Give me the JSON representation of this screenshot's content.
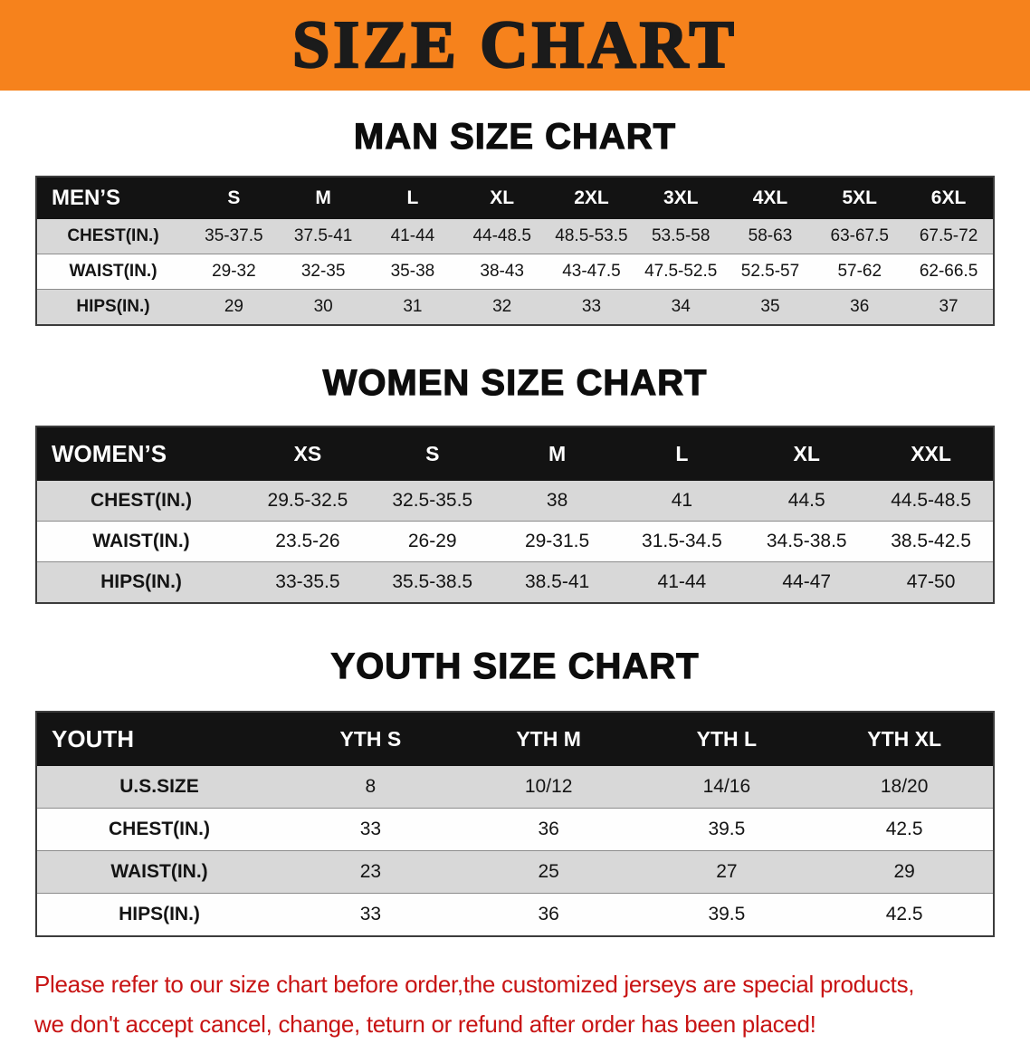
{
  "banner": {
    "title": "SIZE CHART",
    "bg_color": "#f6821c",
    "text_color": "#1b1b1b"
  },
  "sections": [
    {
      "heading": "MAN SIZE CHART",
      "table": {
        "header": [
          "MEN’S",
          "S",
          "M",
          "L",
          "XL",
          "2XL",
          "3XL",
          "4XL",
          "5XL",
          "6XL"
        ],
        "rows": [
          [
            "CHEST(IN.)",
            "35-37.5",
            "37.5-41",
            "41-44",
            "44-48.5",
            "48.5-53.5",
            "53.5-58",
            "58-63",
            "63-67.5",
            "67.5-72"
          ],
          [
            "WAIST(IN.)",
            "29-32",
            "32-35",
            "35-38",
            "38-43",
            "43-47.5",
            "47.5-52.5",
            "52.5-57",
            "57-62",
            "62-66.5"
          ],
          [
            "HIPS(IN.)",
            "29",
            "30",
            "31",
            "32",
            "33",
            "34",
            "35",
            "36",
            "37"
          ]
        ]
      }
    },
    {
      "heading": "WOMEN SIZE CHART",
      "table": {
        "header": [
          "WOMEN’S",
          "XS",
          "S",
          "M",
          "L",
          "XL",
          "XXL"
        ],
        "rows": [
          [
            "CHEST(IN.)",
            "29.5-32.5",
            "32.5-35.5",
            "38",
            "41",
            "44.5",
            "44.5-48.5"
          ],
          [
            "WAIST(IN.)",
            "23.5-26",
            "26-29",
            "29-31.5",
            "31.5-34.5",
            "34.5-38.5",
            "38.5-42.5"
          ],
          [
            "HIPS(IN.)",
            "33-35.5",
            "35.5-38.5",
            "38.5-41",
            "41-44",
            "44-47",
            "47-50"
          ]
        ]
      }
    },
    {
      "heading": "YOUTH SIZE CHART",
      "table": {
        "header": [
          "YOUTH",
          "YTH S",
          "YTH M",
          "YTH L",
          "YTH XL"
        ],
        "rows": [
          [
            "U.S.SIZE",
            "8",
            "10/12",
            "14/16",
            "18/20"
          ],
          [
            "CHEST(IN.)",
            "33",
            "36",
            "39.5",
            "42.5"
          ],
          [
            "WAIST(IN.)",
            "23",
            "25",
            "27",
            "29"
          ],
          [
            "HIPS(IN.)",
            "33",
            "36",
            "39.5",
            "42.5"
          ]
        ]
      }
    }
  ],
  "disclaimer": {
    "color": "#c81414",
    "lines": [
      "Please refer to our size chart before order,the customized jerseys are special products,",
      "we don't accept cancel, change, teturn or refund after order has been placed!"
    ]
  }
}
